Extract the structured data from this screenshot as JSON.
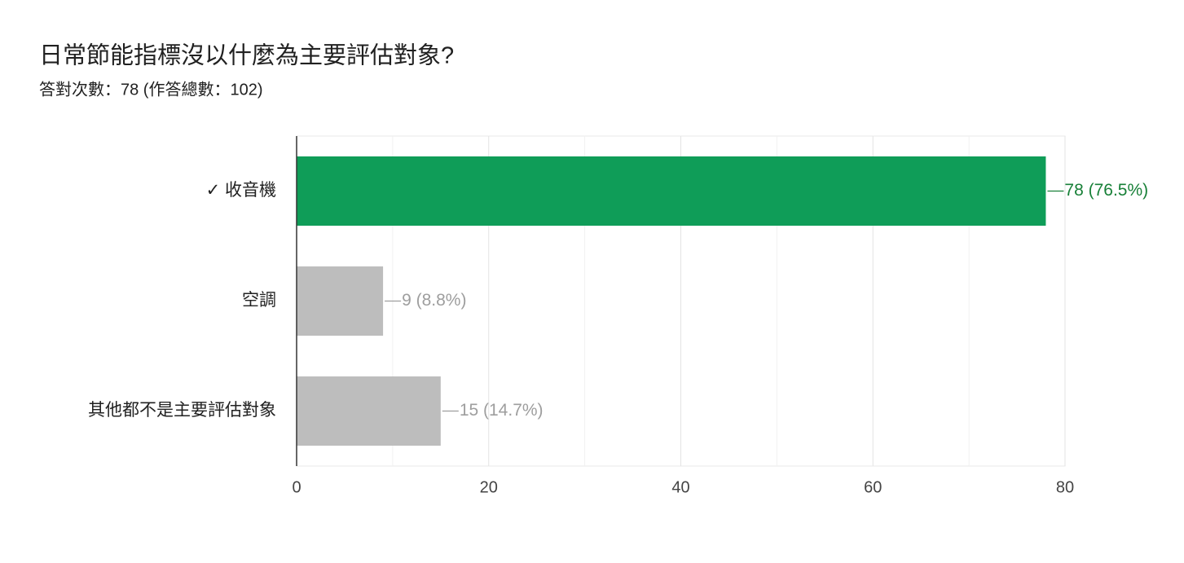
{
  "chart_data": {
    "type": "bar",
    "orientation": "horizontal",
    "title": "日常節能指標沒以什麼為主要評估對象?",
    "subtitle": "答對次數：78 (作答總數：102)",
    "categories": [
      "✓ 收音機",
      "空調",
      "其他都不是主要評估對象"
    ],
    "values": [
      78,
      9,
      15
    ],
    "value_labels": [
      "78 (76.5%)",
      "9 (8.8%)",
      "15 (14.7%)"
    ],
    "colors": [
      "#0f9d58",
      "#bdbdbd",
      "#bdbdbd"
    ],
    "label_colors": [
      "#188038",
      "#9e9e9e",
      "#9e9e9e"
    ],
    "xlim": [
      0,
      80
    ],
    "xticks": [
      0,
      20,
      40,
      60,
      80
    ],
    "minor_xticks": [
      10,
      30,
      50,
      70
    ],
    "grid": true
  }
}
